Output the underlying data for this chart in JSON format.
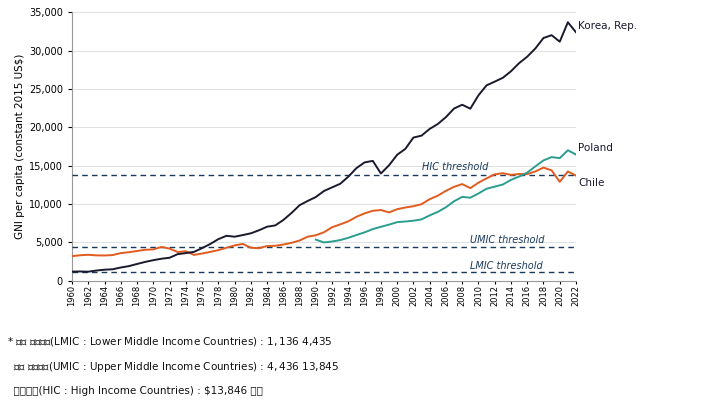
{
  "ylabel": "GNI per capita (constant 2015 US$)",
  "ylim": [
    0,
    35000
  ],
  "yticks": [
    0,
    5000,
    10000,
    15000,
    20000,
    25000,
    30000,
    35000
  ],
  "xlim": [
    1960,
    2022
  ],
  "background_color": "#ffffff",
  "hic_threshold": 13846,
  "umic_threshold": 4436,
  "lmic_threshold": 1136,
  "threshold_color": "#1a3a5c",
  "korea_color": "#1a1a2e",
  "chile_color": "#e05c1e",
  "poland_color": "#2a9d8f",
  "korea_label": "Korea, Rep.",
  "chile_label": "Chile",
  "poland_label": "Poland",
  "hic_label": "HIC threshold",
  "umic_label": "UMIC threshold",
  "lmic_label": "LMIC threshold",
  "footnote_line1": "* 하위 중소득국(LMIC : Lower Middle Income Countries) : $1,136~$4,435",
  "footnote_line2": "  상위 중소득국(UMIC : Upper Middle Income Countries) : $4,436~$13,845",
  "footnote_line3": "  고소득국(HIC : High Income Countries) : $13,846 이상",
  "korea": {
    "years": [
      1960,
      1961,
      1962,
      1963,
      1964,
      1965,
      1966,
      1967,
      1968,
      1969,
      1970,
      1971,
      1972,
      1973,
      1974,
      1975,
      1976,
      1977,
      1978,
      1979,
      1980,
      1981,
      1982,
      1983,
      1984,
      1985,
      1986,
      1987,
      1988,
      1989,
      1990,
      1991,
      1992,
      1993,
      1994,
      1995,
      1996,
      1997,
      1998,
      1999,
      2000,
      2001,
      2002,
      2003,
      2004,
      2005,
      2006,
      2007,
      2008,
      2009,
      2010,
      2011,
      2012,
      2013,
      2014,
      2015,
      2016,
      2017,
      2018,
      2019,
      2020,
      2021,
      2022
    ],
    "values": [
      1203,
      1221,
      1192,
      1341,
      1453,
      1508,
      1739,
      1921,
      2198,
      2467,
      2693,
      2882,
      3011,
      3479,
      3618,
      3775,
      4263,
      4802,
      5434,
      5872,
      5754,
      5965,
      6196,
      6590,
      7058,
      7224,
      7935,
      8846,
      9861,
      10421,
      10930,
      11718,
      12188,
      12657,
      13588,
      14706,
      15444,
      15640,
      13997,
      15064,
      16437,
      17196,
      18680,
      18933,
      19810,
      20448,
      21346,
      22467,
      22959,
      22447,
      24186,
      25490,
      25972,
      26474,
      27323,
      28380,
      29223,
      30297,
      31661,
      32030,
      31180,
      33710,
      32409
    ]
  },
  "chile": {
    "years": [
      1960,
      1961,
      1962,
      1963,
      1964,
      1965,
      1966,
      1967,
      1968,
      1969,
      1970,
      1971,
      1972,
      1973,
      1974,
      1975,
      1976,
      1977,
      1978,
      1979,
      1980,
      1981,
      1982,
      1983,
      1984,
      1985,
      1986,
      1987,
      1988,
      1989,
      1990,
      1991,
      1992,
      1993,
      1994,
      1995,
      1996,
      1997,
      1998,
      1999,
      2000,
      2001,
      2002,
      2003,
      2004,
      2005,
      2006,
      2007,
      2008,
      2009,
      2010,
      2011,
      2012,
      2013,
      2014,
      2015,
      2016,
      2017,
      2018,
      2019,
      2020,
      2021,
      2022
    ],
    "values": [
      3221,
      3336,
      3397,
      3320,
      3306,
      3362,
      3617,
      3731,
      3892,
      4047,
      4097,
      4415,
      4208,
      3753,
      3862,
      3380,
      3561,
      3771,
      4002,
      4316,
      4620,
      4813,
      4316,
      4252,
      4532,
      4573,
      4733,
      4952,
      5259,
      5757,
      5942,
      6337,
      6989,
      7364,
      7762,
      8354,
      8799,
      9133,
      9230,
      8919,
      9339,
      9560,
      9726,
      9997,
      10647,
      11102,
      11735,
      12260,
      12614,
      12088,
      12797,
      13359,
      13883,
      14035,
      13817,
      13925,
      13913,
      14266,
      14763,
      14404,
      12908,
      14261,
      13716
    ]
  },
  "poland": {
    "years": [
      1990,
      1991,
      1992,
      1993,
      1994,
      1995,
      1996,
      1997,
      1998,
      1999,
      2000,
      2001,
      2002,
      2003,
      2004,
      2005,
      2006,
      2007,
      2008,
      2009,
      2010,
      2011,
      2012,
      2013,
      2014,
      2015,
      2016,
      2017,
      2018,
      2019,
      2020,
      2021,
      2022
    ],
    "values": [
      5370,
      5006,
      5131,
      5317,
      5611,
      5980,
      6322,
      6748,
      7046,
      7327,
      7652,
      7735,
      7842,
      8012,
      8538,
      8989,
      9596,
      10373,
      10948,
      10839,
      11390,
      12007,
      12278,
      12558,
      13165,
      13598,
      14110,
      14924,
      15704,
      16131,
      15998,
      17028,
      16461
    ]
  }
}
